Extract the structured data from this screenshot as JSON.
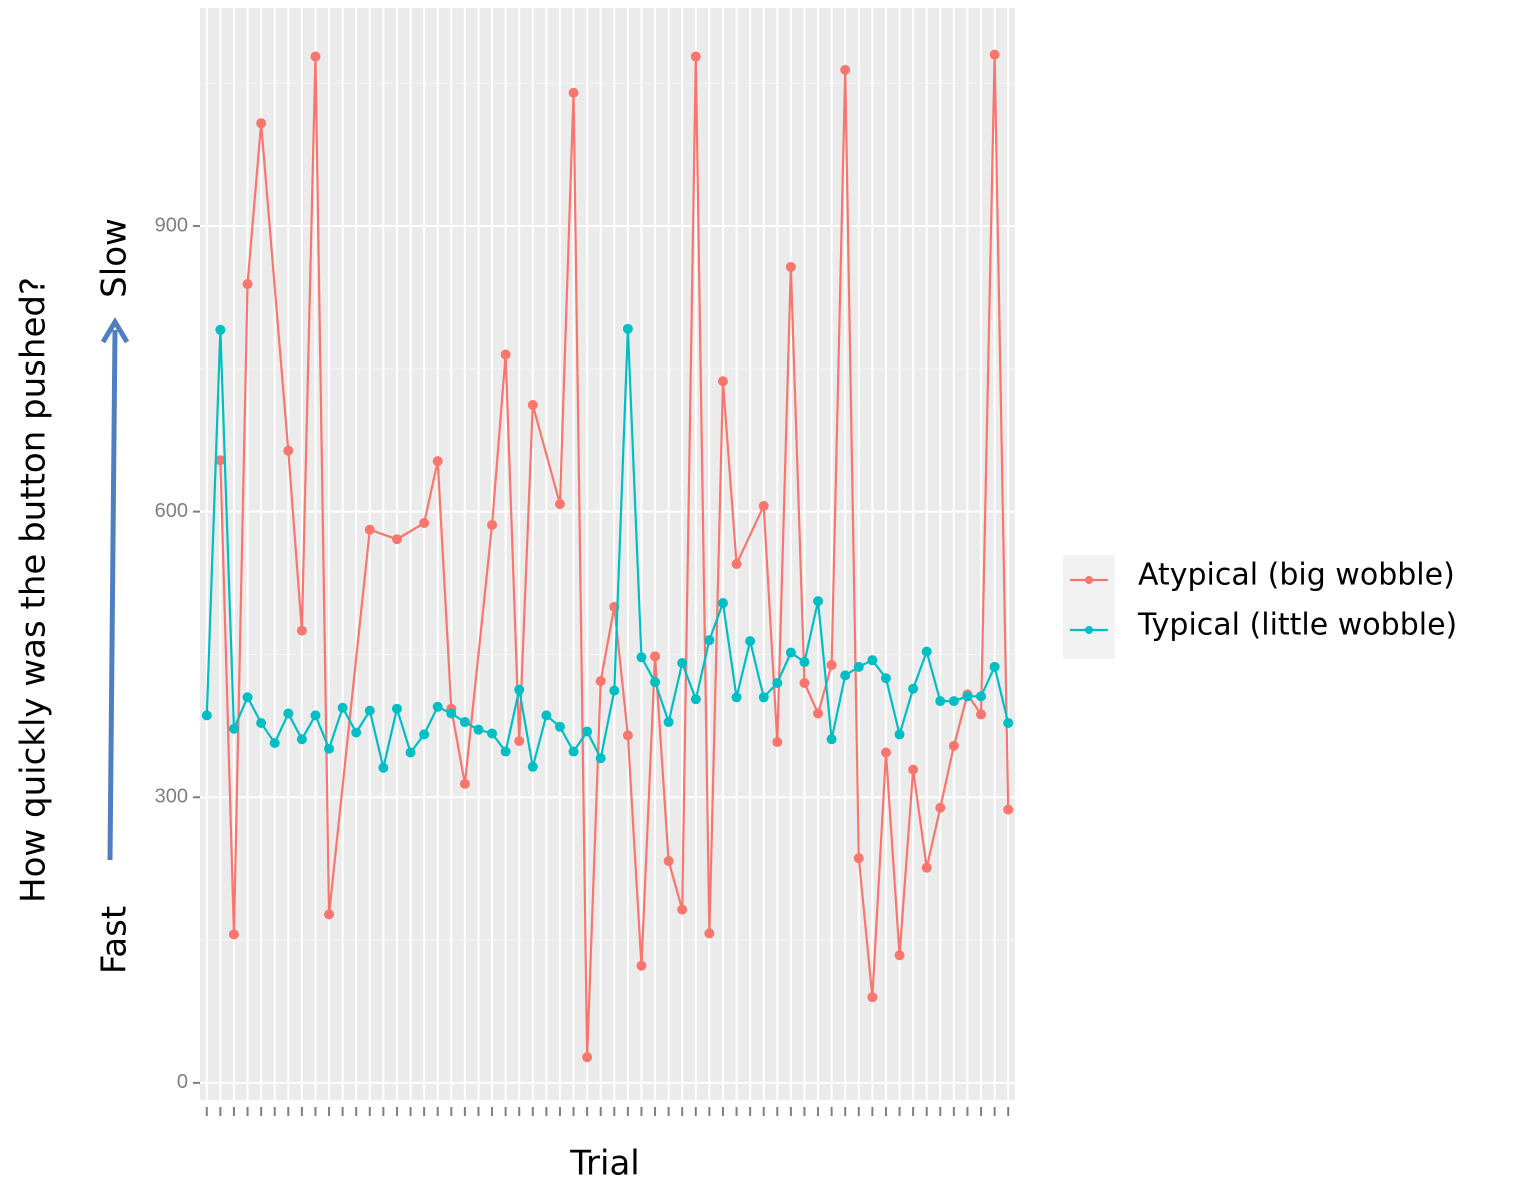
{
  "chart_data": {
    "type": "line",
    "xlabel": "Trial",
    "ylabel": "How quickly was the button pushed?",
    "annotations": [
      "Slow",
      "Fast"
    ],
    "xlim": [
      0.5,
      60.5
    ],
    "xticks": [
      1,
      2,
      3,
      4,
      5,
      6,
      7,
      8,
      9,
      10,
      11,
      12,
      13,
      14,
      15,
      16,
      17,
      18,
      19,
      20,
      21,
      22,
      23,
      24,
      25,
      26,
      27,
      28,
      29,
      30,
      31,
      32,
      33,
      34,
      35,
      36,
      37,
      38,
      39,
      40,
      41,
      42,
      43,
      44,
      45,
      46,
      47,
      48,
      49,
      50,
      51,
      52,
      53,
      54,
      55,
      56,
      57,
      58,
      59,
      60
    ],
    "ylim": [
      -18,
      1129
    ],
    "yticks": [
      0,
      300,
      600,
      900
    ],
    "yminorticks": [
      150,
      450,
      750,
      1050
    ],
    "grid": true,
    "legend": "right",
    "series": [
      {
        "name": "Atypical (big wobble)",
        "color": "#f8766d",
        "x": [
          2,
          3,
          4,
          5,
          7,
          8,
          9,
          10,
          13,
          15,
          17,
          18,
          19,
          20,
          22,
          23,
          24,
          25,
          27,
          28,
          29,
          30,
          31,
          32,
          33,
          34,
          35,
          36,
          37,
          38,
          39,
          40,
          42,
          43,
          44,
          45,
          46,
          47,
          48,
          49,
          50,
          51,
          52,
          53,
          54,
          55,
          56,
          57,
          58,
          59,
          60
        ],
        "values": [
          654,
          156,
          839,
          1008,
          664,
          475,
          1078,
          177,
          581,
          571,
          588,
          653,
          393,
          314,
          586,
          765,
          359,
          712,
          608,
          1040,
          27,
          422,
          500,
          365,
          123,
          448,
          233,
          182,
          1078,
          157,
          737,
          545,
          606,
          358,
          857,
          420,
          388,
          439,
          1064,
          236,
          90,
          347,
          134,
          329,
          226,
          289,
          354,
          408,
          387,
          1080,
          287
        ]
      },
      {
        "name": "Typical (little wobble)",
        "color": "#00bfc4",
        "x": [
          1,
          2,
          3,
          4,
          5,
          6,
          7,
          8,
          9,
          10,
          11,
          12,
          13,
          14,
          15,
          16,
          17,
          18,
          19,
          20,
          21,
          22,
          23,
          24,
          25,
          26,
          27,
          28,
          29,
          30,
          31,
          32,
          33,
          34,
          35,
          36,
          37,
          38,
          39,
          40,
          41,
          42,
          43,
          44,
          45,
          46,
          47,
          48,
          49,
          50,
          51,
          52,
          53,
          54,
          55,
          56,
          57,
          58,
          59,
          60
        ],
        "values": [
          386,
          791,
          372,
          405,
          378,
          357,
          388,
          361,
          386,
          351,
          394,
          368,
          391,
          331,
          393,
          347,
          366,
          395,
          388,
          379,
          371,
          367,
          348,
          413,
          332,
          386,
          374,
          348,
          369,
          341,
          412,
          792,
          447,
          421,
          379,
          441,
          403,
          465,
          504,
          405,
          464,
          405,
          420,
          452,
          442,
          506,
          361,
          428,
          437,
          444,
          425,
          366,
          414,
          453,
          401,
          401,
          406,
          406,
          437,
          378
        ]
      }
    ]
  }
}
